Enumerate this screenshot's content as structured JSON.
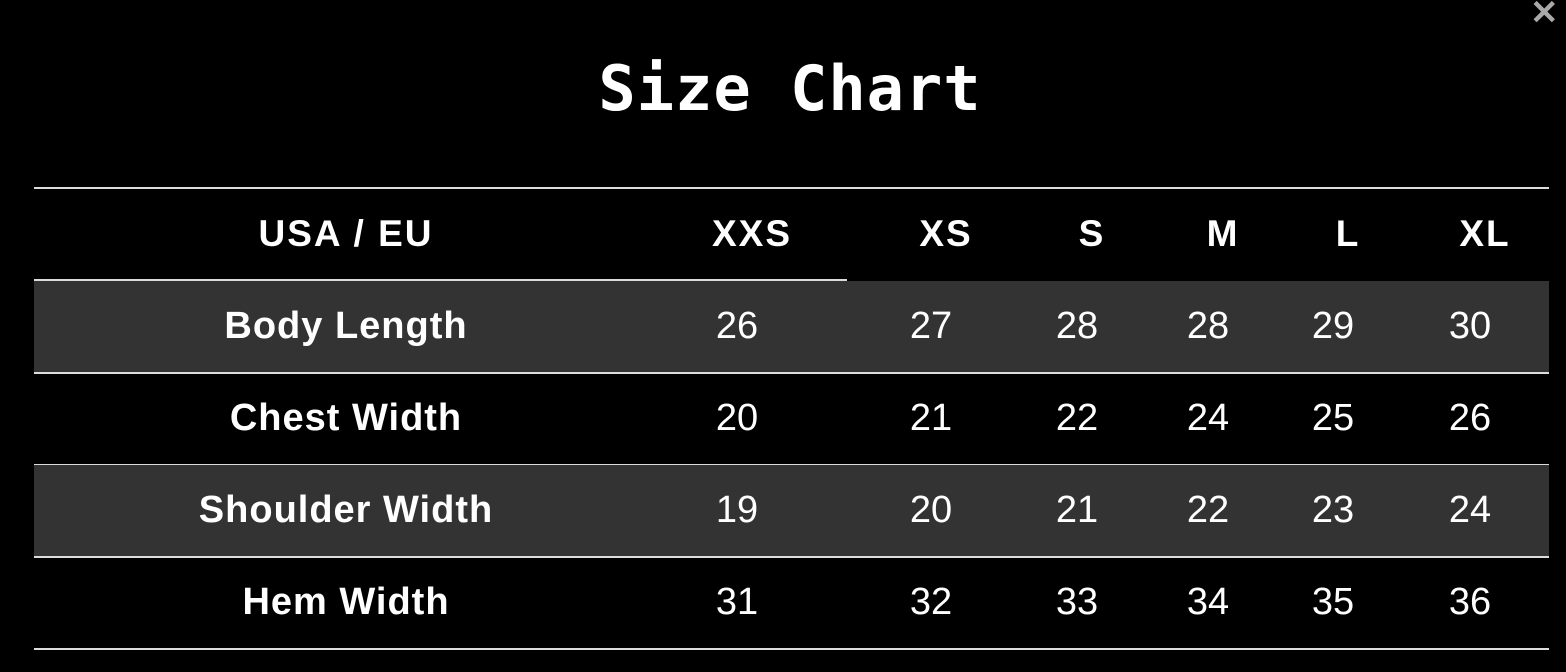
{
  "modal": {
    "title": "Size Chart",
    "close_icon": "close-x-icon"
  },
  "table": {
    "header_label": "USA / EU",
    "sizes": [
      "XXS",
      "XS",
      "S",
      "M",
      "L",
      "XL"
    ],
    "rows": [
      {
        "label": "Body Length",
        "values": [
          "26",
          "27",
          "28",
          "28",
          "29",
          "30"
        ]
      },
      {
        "label": "Chest Width",
        "values": [
          "20",
          "21",
          "22",
          "24",
          "25",
          "26"
        ]
      },
      {
        "label": "Shoulder Width",
        "values": [
          "19",
          "20",
          "21",
          "22",
          "23",
          "24"
        ]
      },
      {
        "label": "Hem Width",
        "values": [
          "31",
          "32",
          "33",
          "34",
          "35",
          "36"
        ]
      }
    ]
  },
  "colors": {
    "background": "#000000",
    "shaded_row": "#333333",
    "text": "#ffffff",
    "divider": "#dcdcdc",
    "close": "#a9a9a9"
  }
}
